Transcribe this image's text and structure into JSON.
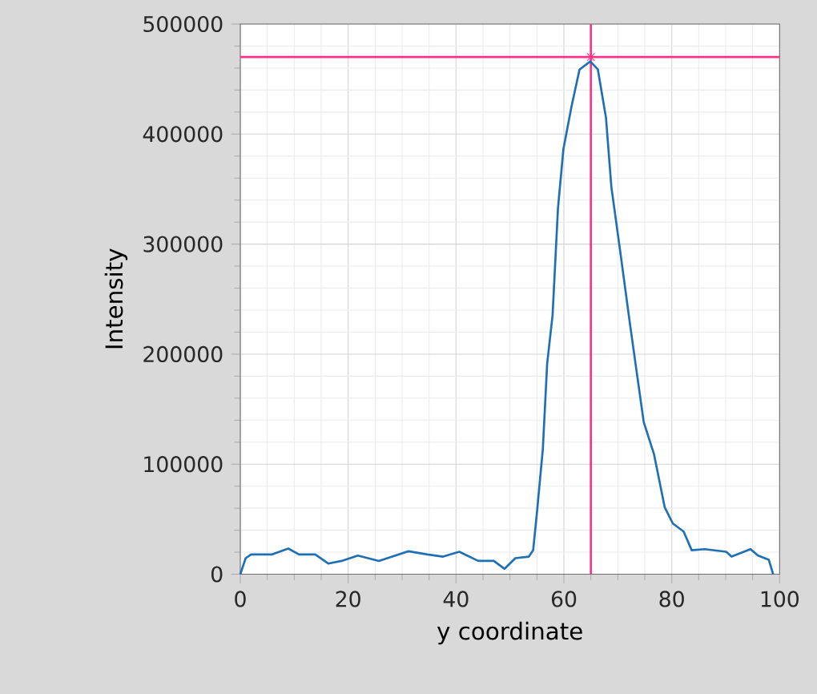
{
  "chart_data": {
    "type": "line",
    "xlabel": "y coordinate",
    "ylabel": "Intensity",
    "x": [
      0,
      1,
      2,
      5.9,
      8.9,
      10.9,
      13.9,
      16.3,
      18.8,
      21.8,
      25.7,
      31.2,
      34.7,
      37.6,
      40.6,
      44.1,
      47,
      49,
      51,
      53.5,
      54.3,
      55,
      56.1,
      56.9,
      57.9,
      58.9,
      59.9,
      61.4,
      62.9,
      64.9,
      66.3,
      67.8,
      68.8,
      70.3,
      72.3,
      74.8,
      76.7,
      78.7,
      80.2,
      82.2,
      83.7,
      86.1,
      90.1,
      91.1,
      94.6,
      96,
      98,
      98.8
    ],
    "series": [
      {
        "color": "#1f6fb4",
        "values": [
          0,
          14600,
          18000,
          18000,
          23300,
          18000,
          18000,
          9700,
          12100,
          17000,
          12100,
          20900,
          18000,
          16000,
          20400,
          12100,
          12100,
          4900,
          14600,
          16000,
          21800,
          55800,
          114000,
          191700,
          235400,
          332500,
          386000,
          424800,
          458700,
          466000,
          458700,
          415000,
          352000,
          298500,
          225700,
          138300,
          109200,
          60700,
          46100,
          38800,
          21800,
          22800,
          20400,
          16000,
          22800,
          17000,
          13100,
          0
        ]
      },
      {
        "type": "scatter",
        "marker": "cross",
        "color": "#ff3385",
        "x": [
          65
        ],
        "values": [
          470000
        ]
      }
    ],
    "ref_lines": [
      {
        "axis": "x",
        "value": 65,
        "color": "#ff3385"
      },
      {
        "axis": "y",
        "value": 470000,
        "color": "#ff3385"
      }
    ],
    "xlim": [
      0,
      100
    ],
    "ylim": [
      0,
      500000
    ],
    "xticks": [
      0,
      20,
      40,
      60,
      80,
      100
    ],
    "yticks": [
      0,
      100000,
      200000,
      300000,
      400000,
      500000
    ],
    "grid": true,
    "marker": "none",
    "line_style": "solid"
  }
}
